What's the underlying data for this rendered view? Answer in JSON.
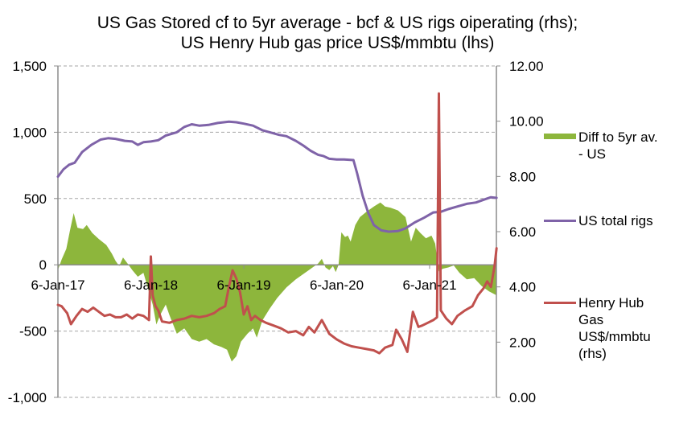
{
  "chart_data": {
    "type": "line",
    "title": [
      "US Gas Stored cf to 5yr average - bcf & US rigs oiperating (rhs);",
      "US Henry Hub gas price US$/mmbtu (lhs)"
    ],
    "xlabel": "",
    "ylabel_left": "",
    "ylabel_right": "",
    "x_tick_labels": [
      "6-Jan-17",
      "6-Jan-18",
      "6-Jan-19",
      "6-Jan-20",
      "6-Jan-21"
    ],
    "x_tick_values": [
      2017.0,
      2018.0,
      2019.0,
      2020.0,
      2021.0
    ],
    "x_range": [
      2017.0,
      2021.72
    ],
    "left_axis": {
      "range": [
        -1000,
        1500
      ],
      "ticks": [
        1500,
        1000,
        500,
        0,
        -500,
        -1000
      ],
      "tick_labels": [
        "1,500",
        "1,000",
        "500",
        "0",
        "-500",
        "-1,000"
      ]
    },
    "right_axis": {
      "range": [
        0,
        12
      ],
      "ticks": [
        12,
        10,
        8,
        6,
        4,
        2,
        0
      ],
      "tick_labels": [
        "12.00",
        "10.00",
        "8.00",
        "6.00",
        "4.00",
        "2.00",
        "0.00"
      ]
    },
    "grid": true,
    "legend_position": "right",
    "series": [
      {
        "name": "Diff to 5yr av. - US",
        "type": "area",
        "axis": "left",
        "color": "#8db63c",
        "points": [
          [
            2017.0,
            -40
          ],
          [
            2017.04,
            40
          ],
          [
            2017.09,
            120
          ],
          [
            2017.13,
            260
          ],
          [
            2017.17,
            390
          ],
          [
            2017.21,
            280
          ],
          [
            2017.27,
            270
          ],
          [
            2017.31,
            300
          ],
          [
            2017.37,
            240
          ],
          [
            2017.44,
            195
          ],
          [
            2017.52,
            150
          ],
          [
            2017.58,
            85
          ],
          [
            2017.62,
            30
          ],
          [
            2017.66,
            -10
          ],
          [
            2017.7,
            55
          ],
          [
            2017.75,
            10
          ],
          [
            2017.8,
            -40
          ],
          [
            2017.86,
            -90
          ],
          [
            2017.92,
            -60
          ],
          [
            2017.97,
            -180
          ],
          [
            2018.02,
            -300
          ],
          [
            2018.06,
            -450
          ],
          [
            2018.1,
            -380
          ],
          [
            2018.16,
            -300
          ],
          [
            2018.2,
            -380
          ],
          [
            2018.28,
            -520
          ],
          [
            2018.36,
            -480
          ],
          [
            2018.44,
            -560
          ],
          [
            2018.52,
            -580
          ],
          [
            2018.6,
            -560
          ],
          [
            2018.68,
            -600
          ],
          [
            2018.76,
            -620
          ],
          [
            2018.82,
            -640
          ],
          [
            2018.87,
            -730
          ],
          [
            2018.92,
            -690
          ],
          [
            2018.97,
            -580
          ],
          [
            2019.04,
            -520
          ],
          [
            2019.1,
            -480
          ],
          [
            2019.14,
            -550
          ],
          [
            2019.2,
            -420
          ],
          [
            2019.28,
            -330
          ],
          [
            2019.36,
            -250
          ],
          [
            2019.46,
            -170
          ],
          [
            2019.56,
            -110
          ],
          [
            2019.66,
            -60
          ],
          [
            2019.74,
            -20
          ],
          [
            2019.8,
            10
          ],
          [
            2019.84,
            45
          ],
          [
            2019.88,
            -20
          ],
          [
            2019.92,
            -40
          ],
          [
            2019.96,
            -10
          ],
          [
            2019.99,
            -55
          ],
          [
            2020.02,
            0
          ],
          [
            2020.05,
            245
          ],
          [
            2020.09,
            210
          ],
          [
            2020.12,
            220
          ],
          [
            2020.15,
            175
          ],
          [
            2020.2,
            300
          ],
          [
            2020.25,
            360
          ],
          [
            2020.32,
            400
          ],
          [
            2020.4,
            440
          ],
          [
            2020.47,
            470
          ],
          [
            2020.52,
            440
          ],
          [
            2020.58,
            430
          ],
          [
            2020.66,
            410
          ],
          [
            2020.74,
            360
          ],
          [
            2020.8,
            175
          ],
          [
            2020.85,
            280
          ],
          [
            2020.9,
            240
          ],
          [
            2020.96,
            200
          ],
          [
            2021.02,
            220
          ],
          [
            2021.06,
            160
          ],
          [
            2021.1,
            -50
          ],
          [
            2021.14,
            -30
          ],
          [
            2021.2,
            -20
          ],
          [
            2021.26,
            -5
          ],
          [
            2021.32,
            -60
          ],
          [
            2021.4,
            -110
          ],
          [
            2021.48,
            -100
          ],
          [
            2021.56,
            -160
          ],
          [
            2021.64,
            -200
          ],
          [
            2021.72,
            -230
          ]
        ]
      },
      {
        "name": "US total rigs",
        "type": "line",
        "axis": "left",
        "color": "#7f63a8",
        "points": [
          [
            2017.0,
            665
          ],
          [
            2017.06,
            720
          ],
          [
            2017.12,
            755
          ],
          [
            2017.18,
            770
          ],
          [
            2017.26,
            850
          ],
          [
            2017.36,
            905
          ],
          [
            2017.46,
            945
          ],
          [
            2017.54,
            955
          ],
          [
            2017.62,
            950
          ],
          [
            2017.72,
            935
          ],
          [
            2017.8,
            930
          ],
          [
            2017.86,
            905
          ],
          [
            2017.92,
            925
          ],
          [
            2018.0,
            930
          ],
          [
            2018.08,
            940
          ],
          [
            2018.16,
            975
          ],
          [
            2018.28,
            1000
          ],
          [
            2018.36,
            1040
          ],
          [
            2018.44,
            1060
          ],
          [
            2018.52,
            1050
          ],
          [
            2018.62,
            1055
          ],
          [
            2018.72,
            1070
          ],
          [
            2018.84,
            1080
          ],
          [
            2018.92,
            1075
          ],
          [
            2019.0,
            1065
          ],
          [
            2019.1,
            1050
          ],
          [
            2019.2,
            1015
          ],
          [
            2019.28,
            1000
          ],
          [
            2019.38,
            980
          ],
          [
            2019.46,
            970
          ],
          [
            2019.56,
            935
          ],
          [
            2019.64,
            900
          ],
          [
            2019.72,
            860
          ],
          [
            2019.8,
            830
          ],
          [
            2019.86,
            820
          ],
          [
            2019.92,
            800
          ],
          [
            2020.0,
            795
          ],
          [
            2020.08,
            795
          ],
          [
            2020.18,
            790
          ],
          [
            2020.22,
            690
          ],
          [
            2020.28,
            520
          ],
          [
            2020.34,
            390
          ],
          [
            2020.4,
            300
          ],
          [
            2020.48,
            260
          ],
          [
            2020.56,
            250
          ],
          [
            2020.66,
            255
          ],
          [
            2020.74,
            275
          ],
          [
            2020.84,
            320
          ],
          [
            2020.94,
            355
          ],
          [
            2021.04,
            395
          ],
          [
            2021.12,
            400
          ],
          [
            2021.2,
            420
          ],
          [
            2021.3,
            440
          ],
          [
            2021.4,
            460
          ],
          [
            2021.5,
            470
          ],
          [
            2021.6,
            495
          ],
          [
            2021.66,
            510
          ],
          [
            2021.72,
            505
          ]
        ]
      },
      {
        "name": "Henry Hub Gas US$/mmbtu (rhs)",
        "type": "line",
        "axis": "right",
        "color": "#c0504d",
        "points": [
          [
            2017.0,
            3.35
          ],
          [
            2017.04,
            3.3
          ],
          [
            2017.1,
            3.05
          ],
          [
            2017.14,
            2.65
          ],
          [
            2017.2,
            2.95
          ],
          [
            2017.26,
            3.2
          ],
          [
            2017.32,
            3.1
          ],
          [
            2017.38,
            3.25
          ],
          [
            2017.44,
            3.1
          ],
          [
            2017.5,
            2.95
          ],
          [
            2017.56,
            3.0
          ],
          [
            2017.62,
            2.9
          ],
          [
            2017.68,
            2.9
          ],
          [
            2017.74,
            3.0
          ],
          [
            2017.8,
            2.85
          ],
          [
            2017.86,
            3.0
          ],
          [
            2017.92,
            2.95
          ],
          [
            2017.98,
            2.8
          ],
          [
            2018.0,
            5.1
          ],
          [
            2018.02,
            3.7
          ],
          [
            2018.05,
            3.3
          ],
          [
            2018.08,
            3.15
          ],
          [
            2018.12,
            2.75
          ],
          [
            2018.2,
            2.7
          ],
          [
            2018.28,
            2.8
          ],
          [
            2018.36,
            2.85
          ],
          [
            2018.44,
            2.95
          ],
          [
            2018.52,
            2.9
          ],
          [
            2018.6,
            2.95
          ],
          [
            2018.68,
            3.05
          ],
          [
            2018.74,
            3.2
          ],
          [
            2018.8,
            3.3
          ],
          [
            2018.84,
            4.0
          ],
          [
            2018.88,
            4.6
          ],
          [
            2018.92,
            4.3
          ],
          [
            2018.96,
            3.8
          ],
          [
            2019.0,
            3.0
          ],
          [
            2019.04,
            3.3
          ],
          [
            2019.08,
            2.8
          ],
          [
            2019.12,
            2.95
          ],
          [
            2019.18,
            2.8
          ],
          [
            2019.24,
            2.7
          ],
          [
            2019.32,
            2.6
          ],
          [
            2019.4,
            2.5
          ],
          [
            2019.48,
            2.35
          ],
          [
            2019.56,
            2.4
          ],
          [
            2019.64,
            2.25
          ],
          [
            2019.7,
            2.55
          ],
          [
            2019.76,
            2.35
          ],
          [
            2019.84,
            2.8
          ],
          [
            2019.92,
            2.3
          ],
          [
            2020.0,
            2.1
          ],
          [
            2020.08,
            1.95
          ],
          [
            2020.16,
            1.85
          ],
          [
            2020.24,
            1.8
          ],
          [
            2020.32,
            1.75
          ],
          [
            2020.4,
            1.7
          ],
          [
            2020.46,
            1.6
          ],
          [
            2020.52,
            1.8
          ],
          [
            2020.6,
            1.9
          ],
          [
            2020.64,
            2.45
          ],
          [
            2020.7,
            2.1
          ],
          [
            2020.76,
            1.65
          ],
          [
            2020.82,
            3.1
          ],
          [
            2020.88,
            2.55
          ],
          [
            2020.92,
            2.6
          ],
          [
            2020.98,
            2.7
          ],
          [
            2021.04,
            2.8
          ],
          [
            2021.08,
            2.9
          ],
          [
            2021.1,
            11.0
          ],
          [
            2021.12,
            3.15
          ],
          [
            2021.18,
            2.85
          ],
          [
            2021.24,
            2.65
          ],
          [
            2021.3,
            2.95
          ],
          [
            2021.38,
            3.15
          ],
          [
            2021.46,
            3.3
          ],
          [
            2021.52,
            3.7
          ],
          [
            2021.58,
            3.95
          ],
          [
            2021.62,
            4.2
          ],
          [
            2021.66,
            4.0
          ],
          [
            2021.7,
            4.8
          ],
          [
            2021.72,
            5.4
          ]
        ]
      }
    ]
  },
  "legend": {
    "items": [
      {
        "label_lines": [
          "Diff to 5yr av.",
          "- US"
        ],
        "color": "#8db63c",
        "kind": "area"
      },
      {
        "label_lines": [
          "US total rigs"
        ],
        "color": "#7f63a8",
        "kind": "line"
      },
      {
        "label_lines": [
          "Henry Hub",
          "Gas",
          "US$/mmbtu",
          "(rhs)"
        ],
        "color": "#c0504d",
        "kind": "line"
      }
    ]
  }
}
